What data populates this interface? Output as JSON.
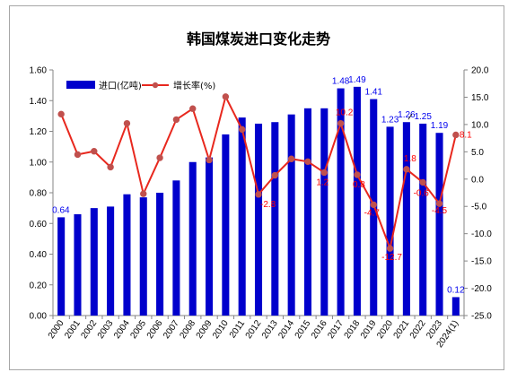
{
  "chart_data": {
    "type": "bar",
    "title": "韩国煤炭进口变化走势",
    "categories": [
      "2000",
      "2001",
      "2002",
      "2003",
      "2004",
      "2005",
      "2006",
      "2007",
      "2008",
      "2009",
      "2010",
      "2011",
      "2012",
      "2013",
      "2014",
      "2015",
      "2016",
      "2017",
      "2018",
      "2019",
      "2020",
      "2021",
      "2022",
      "2023",
      "2024(1)"
    ],
    "series": [
      {
        "name": "进口(亿吨)",
        "type": "bar",
        "axis": "left",
        "color": "#0000cc",
        "values": [
          0.64,
          0.66,
          0.7,
          0.71,
          0.79,
          0.77,
          0.8,
          0.88,
          1.0,
          1.03,
          1.18,
          1.29,
          1.25,
          1.26,
          1.31,
          1.35,
          1.35,
          1.48,
          1.49,
          1.41,
          1.23,
          1.26,
          1.25,
          1.19,
          0.12
        ],
        "data_labels": {
          "0": "0.64",
          "17": "1.48",
          "18": "1.49",
          "19": "1.41",
          "20": "1.23",
          "21": "1.26",
          "22": "1.25",
          "23": "1.19",
          "24": "0.12"
        }
      },
      {
        "name": "增长率(%)",
        "type": "line",
        "axis": "right",
        "color": "#e8281e",
        "marker_color": "#c0504d",
        "values": [
          11.9,
          4.5,
          5.1,
          2.2,
          10.2,
          -2.7,
          3.9,
          10.9,
          12.9,
          3.5,
          15.1,
          9.1,
          -2.8,
          0.7,
          3.7,
          3.2,
          1.2,
          10.2,
          0.8,
          -4.7,
          -12.7,
          1.8,
          -0.6,
          -4.5,
          8.1
        ],
        "data_labels": {
          "12": "-2.8",
          "16": "1.2",
          "17": "10.2",
          "18": "0.8",
          "19": "-4.7",
          "20": "-12.7",
          "21": "1.8",
          "22": "-0.6",
          "23": "-4.5",
          "24": "8.1"
        }
      }
    ],
    "y_left": {
      "min": 0,
      "max": 1.6,
      "ticks": [
        "0.00",
        "0.20",
        "0.40",
        "0.60",
        "0.80",
        "1.00",
        "1.20",
        "1.40",
        "1.60"
      ]
    },
    "y_right": {
      "min": -25,
      "max": 20,
      "ticks": [
        "-25.0",
        "-20.0",
        "-15.0",
        "-10.0",
        "-5.0",
        "0.0",
        "5.0",
        "10.0",
        "15.0",
        "20.0"
      ]
    },
    "legend": {
      "position": "top-left",
      "entries": [
        "进口(亿吨)",
        "增长率(%)"
      ]
    },
    "grid": false
  }
}
